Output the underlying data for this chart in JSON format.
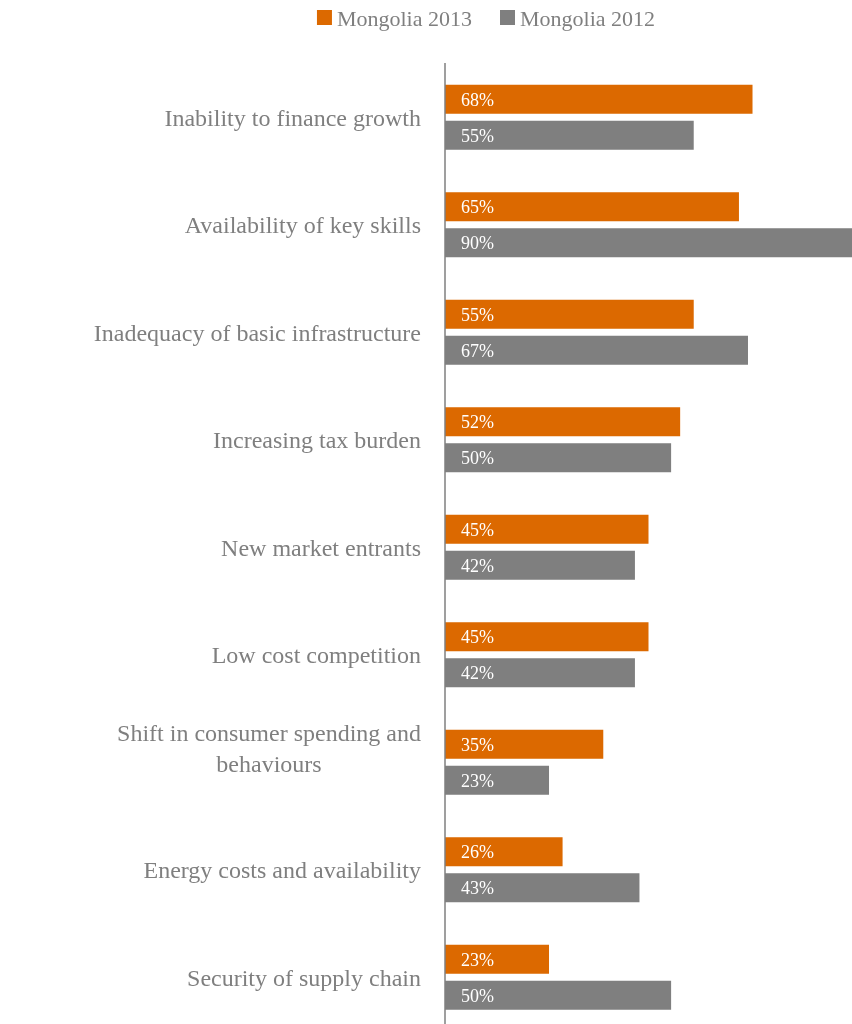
{
  "chart_data": {
    "type": "bar",
    "orientation": "horizontal",
    "categories": [
      "Inability to finance growth",
      "Availability of key skills",
      "Inadequacy of basic infrastructure",
      "Increasing tax burden",
      "New market entrants",
      "Low cost competition",
      "Shift in consumer spending and behaviours",
      "Energy costs and availability",
      "Security of supply chain"
    ],
    "series": [
      {
        "name": "Mongolia 2013",
        "color": "#dc6900",
        "values": [
          68,
          65,
          55,
          52,
          45,
          45,
          35,
          26,
          23
        ],
        "value_labels": [
          "68%",
          "65%",
          "55%",
          "52%",
          "45%",
          "45%",
          "35%",
          "26%",
          "23%"
        ]
      },
      {
        "name": "Mongolia 2012",
        "color": "#7f7f7f",
        "values": [
          55,
          90,
          67,
          50,
          42,
          42,
          23,
          43,
          50
        ],
        "value_labels": [
          "55%",
          "90%",
          "67%",
          "50%",
          "42%",
          "42%",
          "23%",
          "43%",
          "50%"
        ]
      }
    ],
    "xlim": [
      0,
      90
    ],
    "tick_labels": "y",
    "legend": "top"
  }
}
